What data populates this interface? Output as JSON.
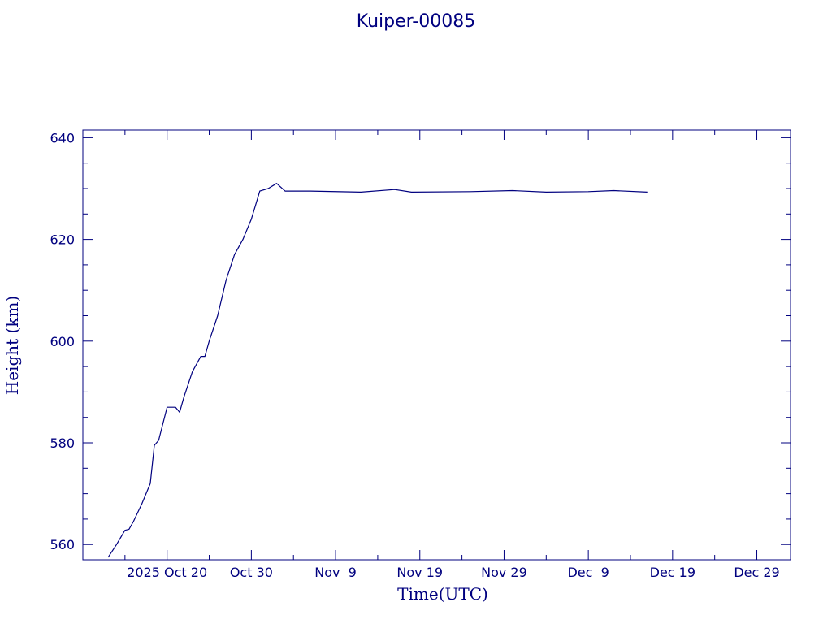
{
  "chart_data": {
    "type": "line",
    "title": "Kuiper-00085",
    "xlabel": "Time(UTC)",
    "ylabel": "Height (km)",
    "x_tick_labels": [
      "2025 Oct 20",
      "Oct 30",
      "Nov  9",
      "Nov 19",
      "Nov 29",
      "Dec  9",
      "Dec 19",
      "Dec 29"
    ],
    "x_tick_dates": [
      "2025-10-20",
      "2025-10-30",
      "2025-11-09",
      "2025-11-19",
      "2025-11-29",
      "2025-12-09",
      "2025-12-19",
      "2025-12-29"
    ],
    "xlim": [
      "2025-10-10",
      "2026-01-02"
    ],
    "y_ticks": [
      560,
      580,
      600,
      620,
      640
    ],
    "ylim": [
      557,
      641.5
    ],
    "grid": false,
    "line_color": "#00007f",
    "series": [
      {
        "x": [
          "2025-10-13",
          "2025-10-14",
          "2025-10-15",
          "2025-10-15",
          "2025-10-16",
          "2025-10-17",
          "2025-10-18",
          "2025-10-18",
          "2025-10-19",
          "2025-10-20",
          "2025-10-21",
          "2025-10-21",
          "2025-10-22",
          "2025-10-23",
          "2025-10-24",
          "2025-10-24",
          "2025-10-25",
          "2025-10-26",
          "2025-10-27",
          "2025-10-28",
          "2025-10-29",
          "2025-10-30",
          "2025-10-31",
          "2025-11-01",
          "2025-11-02",
          "2025-11-03",
          "2025-11-06",
          "2025-11-12",
          "2025-11-16",
          "2025-11-18",
          "2025-11-25",
          "2025-11-30",
          "2025-12-04",
          "2025-12-09",
          "2025-12-12",
          "2025-12-16"
        ],
        "y": [
          557.5,
          560,
          562.8,
          563,
          564.5,
          568,
          572,
          579.5,
          580.5,
          587,
          587,
          586,
          589,
          594,
          597,
          597,
          600,
          605,
          612,
          617,
          620,
          624,
          629.5,
          630,
          631,
          629.5,
          629.5,
          629.3,
          629.8,
          629.3,
          629.4,
          629.6,
          629.3,
          629.4,
          629.6,
          629.3
        ]
      }
    ]
  }
}
